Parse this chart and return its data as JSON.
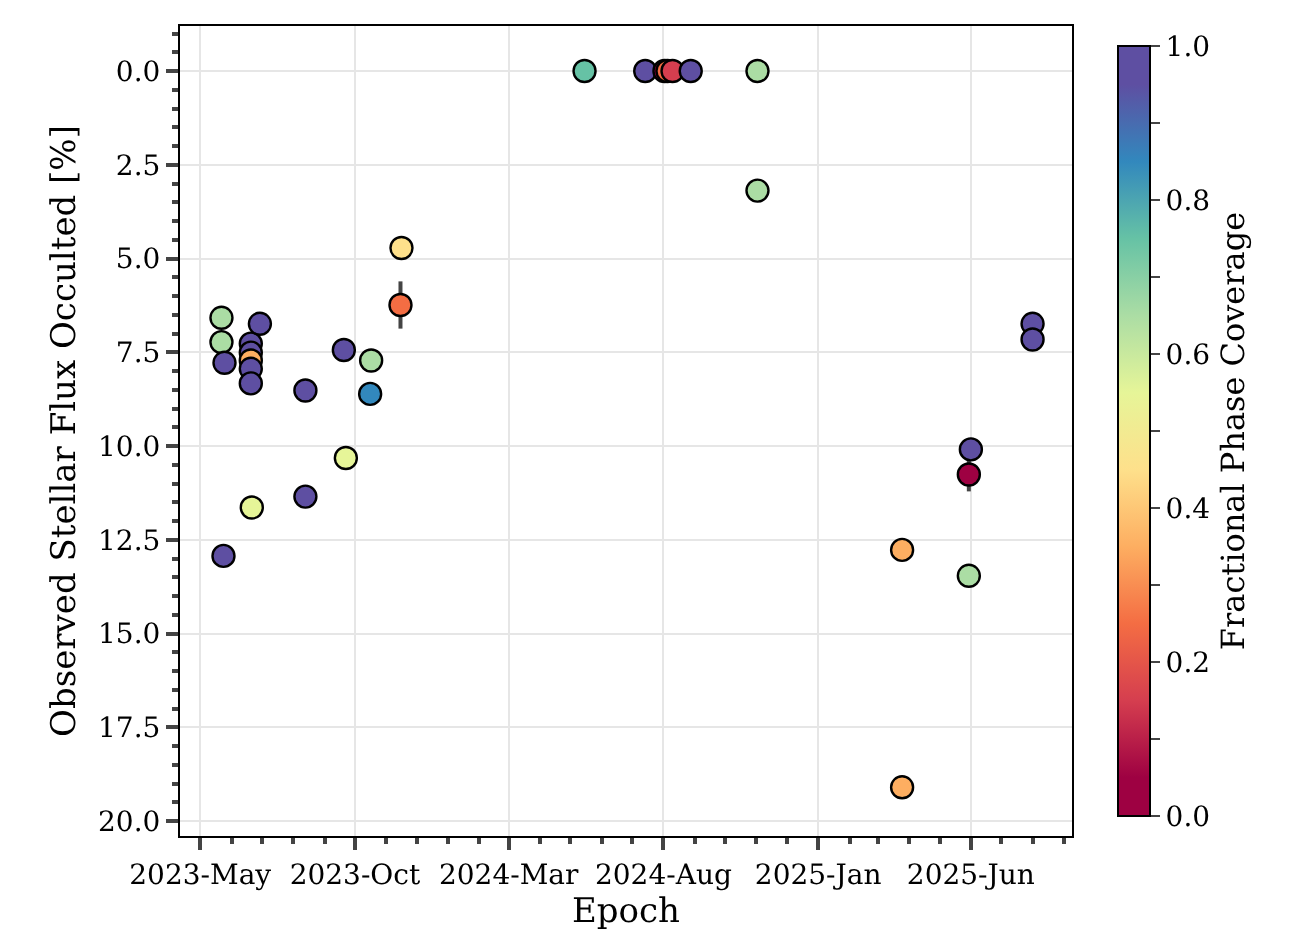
{
  "chart_data": {
    "type": "scatter",
    "xlabel": "Epoch",
    "ylabel": "Observed Stellar Flux Occulted [%]",
    "clabel": "Fractional Phase Coverage",
    "x": [
      "2023-05-22",
      "2023-05-22",
      "2023-05-25",
      "2023-05-24",
      "2023-06-20",
      "2023-06-20",
      "2023-06-20",
      "2023-06-20",
      "2023-06-20",
      "2023-06-29",
      "2023-06-21",
      "2023-08-13",
      "2023-08-13",
      "2023-09-20",
      "2023-09-22",
      "2023-10-17",
      "2023-10-16",
      "2023-11-16",
      "2023-11-15",
      "2024-05-15",
      "2024-07-14",
      "2024-08-02",
      "2024-08-05",
      "2024-08-10",
      "2024-08-28",
      "2024-11-02",
      "2024-11-02",
      "2025-03-25",
      "2025-03-25",
      "2025-06-01",
      "2025-05-30",
      "2025-05-30",
      "2025-08-01",
      "2025-08-01"
    ],
    "values": [
      6.58,
      7.23,
      7.78,
      12.93,
      7.27,
      7.51,
      7.72,
      7.94,
      8.33,
      6.74,
      11.64,
      8.52,
      11.35,
      7.44,
      10.32,
      7.72,
      8.61,
      4.72,
      6.24,
      0,
      0,
      0,
      0,
      0,
      0,
      0,
      3.19,
      12.77,
      19.1,
      10.09,
      10.76,
      13.46,
      6.74,
      7.16
    ],
    "cvalues": [
      0.65,
      0.65,
      0.95,
      0.95,
      0.95,
      0.95,
      0.35,
      0.95,
      0.95,
      0.95,
      0.55,
      0.95,
      0.95,
      0.95,
      0.55,
      0.65,
      0.85,
      0.45,
      0.25,
      0.75,
      0.95,
      0.05,
      0.25,
      0.15,
      0.95,
      0.65,
      0.65,
      0.35,
      0.35,
      0.95,
      0.05,
      0.65,
      0.95,
      0.95
    ],
    "errors": [
      null,
      null,
      null,
      null,
      null,
      null,
      null,
      null,
      null,
      null,
      null,
      null,
      null,
      null,
      null,
      null,
      null,
      null,
      0.63,
      null,
      null,
      null,
      null,
      null,
      null,
      null,
      null,
      null,
      null,
      null,
      0.45,
      null,
      null,
      null
    ],
    "colors": [
      "#abdda4",
      "#abdda4",
      "#5e4fa2",
      "#5e4fa2",
      "#5e4fa2",
      "#5e4fa2",
      "#fdae61",
      "#5e4fa2",
      "#5e4fa2",
      "#5e4fa2",
      "#e6f598",
      "#5e4fa2",
      "#5e4fa2",
      "#5e4fa2",
      "#e6f598",
      "#abdda4",
      "#3288bd",
      "#fee08b",
      "#f46d43",
      "#66c2a5",
      "#5e4fa2",
      "#9e0142",
      "#f46d43",
      "#d53e4f",
      "#5e4fa2",
      "#abdda4",
      "#abdda4",
      "#fdae61",
      "#fdae61",
      "#5e4fa2",
      "#9e0142",
      "#abdda4",
      "#5e4fa2",
      "#5e4fa2"
    ],
    "clim": [
      0,
      1
    ],
    "cticks": [
      {
        "value": 0,
        "label": "0.0"
      },
      {
        "value": 0.1,
        "label": null
      },
      {
        "value": 0.2,
        "label": "0.2"
      },
      {
        "value": 0.3,
        "label": null
      },
      {
        "value": 0.4,
        "label": "0.4"
      },
      {
        "value": 0.5,
        "label": null
      },
      {
        "value": 0.6,
        "label": "0.6"
      },
      {
        "value": 0.7,
        "label": null
      },
      {
        "value": 0.8,
        "label": "0.8"
      },
      {
        "value": 0.9,
        "label": null
      },
      {
        "value": 1,
        "label": "1.0"
      }
    ],
    "xlim": [
      "2023-04-11",
      "2025-09-09"
    ],
    "xticks": [
      {
        "value": "2023-05-01",
        "label": "2023-May"
      },
      {
        "value": "2023-10-01",
        "label": "2023-Oct"
      },
      {
        "value": "2024-03-01",
        "label": "2024-Mar"
      },
      {
        "value": "2024-08-01",
        "label": "2024-Aug"
      },
      {
        "value": "2025-01-01",
        "label": "2025-Jan"
      },
      {
        "value": "2025-06-01",
        "label": "2025-Jun"
      }
    ],
    "ylim": [
      20.4,
      -1.2
    ],
    "yticks": [
      {
        "value": 0,
        "label": "0.0"
      },
      {
        "value": 2.5,
        "label": "2.5"
      },
      {
        "value": 5,
        "label": "5.0"
      },
      {
        "value": 7.5,
        "label": "7.5"
      },
      {
        "value": 10,
        "label": "10.0"
      },
      {
        "value": 12.5,
        "label": "12.5"
      },
      {
        "value": 15,
        "label": "15.0"
      },
      {
        "value": 17.5,
        "label": "17.5"
      },
      {
        "value": 20,
        "label": "20.0"
      }
    ],
    "grid": true,
    "legend": false,
    "marker": "circle"
  }
}
